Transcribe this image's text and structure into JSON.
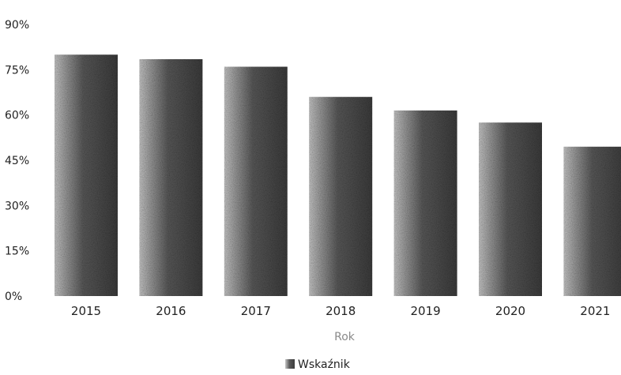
{
  "chart_data": {
    "type": "bar",
    "categories": [
      "2015",
      "2016",
      "2017",
      "2018",
      "2019",
      "2020",
      "2021"
    ],
    "series": [
      {
        "name": "Wskaźnik",
        "values": [
          80,
          78.5,
          76,
          66,
          61.5,
          57.5,
          49.5
        ]
      }
    ],
    "xlabel": "Rok",
    "ylabel": "",
    "ylim": [
      0,
      90
    ],
    "yticks": [
      "0%",
      "15%",
      "30%",
      "45%",
      "60%",
      "75%",
      "90%"
    ],
    "ytick_values": [
      0,
      15,
      30,
      45,
      60,
      75,
      90
    ],
    "grid": false,
    "legend_position": "bottom-center",
    "bar_color": "#4a4a4a"
  }
}
